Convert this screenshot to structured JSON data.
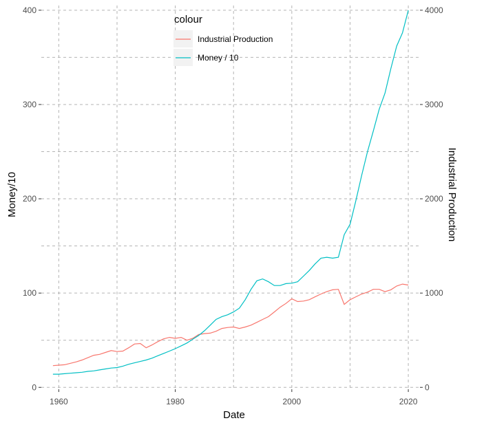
{
  "chart_data": {
    "type": "line",
    "title": "",
    "xlabel": "Date",
    "ylabel": "Money/10",
    "y2label": "Industrial Production",
    "xlim": [
      1957,
      2022
    ],
    "ylim": [
      -2,
      405
    ],
    "y2lim": [
      -20,
      4050
    ],
    "x_ticks": [
      1960,
      1980,
      2000,
      2020
    ],
    "x_minor_ticks": [
      1970,
      1990,
      2010
    ],
    "y_ticks": [
      0,
      100,
      200,
      300,
      400
    ],
    "y2_ticks": [
      0,
      1000,
      2000,
      3000,
      4000
    ],
    "grid": true,
    "legend": {
      "title": "colour",
      "position": "top-center"
    },
    "series": [
      {
        "name": "Industrial Production",
        "color": "#F8766D",
        "points": [
          [
            1959,
            23
          ],
          [
            1960,
            23.5
          ],
          [
            1961,
            24
          ],
          [
            1962,
            25.5
          ],
          [
            1963,
            27
          ],
          [
            1964,
            29
          ],
          [
            1965,
            31.5
          ],
          [
            1966,
            34
          ],
          [
            1967,
            35
          ],
          [
            1968,
            37
          ],
          [
            1969,
            39
          ],
          [
            1970,
            38
          ],
          [
            1971,
            38.5
          ],
          [
            1972,
            42
          ],
          [
            1973,
            46
          ],
          [
            1974,
            46.5
          ],
          [
            1975,
            42
          ],
          [
            1976,
            45
          ],
          [
            1977,
            48.5
          ],
          [
            1978,
            51.5
          ],
          [
            1979,
            53
          ],
          [
            1980,
            52
          ],
          [
            1981,
            53
          ],
          [
            1982,
            50
          ],
          [
            1983,
            52
          ],
          [
            1984,
            56
          ],
          [
            1985,
            57
          ],
          [
            1986,
            57.5
          ],
          [
            1987,
            59.5
          ],
          [
            1988,
            62.5
          ],
          [
            1989,
            63.5
          ],
          [
            1990,
            64
          ],
          [
            1991,
            62.5
          ],
          [
            1992,
            64
          ],
          [
            1993,
            66
          ],
          [
            1994,
            69
          ],
          [
            1995,
            72
          ],
          [
            1996,
            75
          ],
          [
            1997,
            80
          ],
          [
            1998,
            85
          ],
          [
            1999,
            89
          ],
          [
            2000,
            94
          ],
          [
            2001,
            91
          ],
          [
            2002,
            91.5
          ],
          [
            2003,
            93
          ],
          [
            2004,
            96
          ],
          [
            2005,
            99
          ],
          [
            2006,
            101.5
          ],
          [
            2007,
            103.5
          ],
          [
            2008,
            104
          ],
          [
            2009,
            88
          ],
          [
            2010,
            93
          ],
          [
            2011,
            96
          ],
          [
            2012,
            99
          ],
          [
            2013,
            101
          ],
          [
            2014,
            104
          ],
          [
            2015,
            104
          ],
          [
            2016,
            101.5
          ],
          [
            2017,
            103.5
          ],
          [
            2018,
            107.5
          ],
          [
            2019,
            109.5
          ],
          [
            2020,
            108.5
          ]
        ]
      },
      {
        "name": "Money / 10",
        "color": "#00BFC4",
        "points": [
          [
            1959,
            14
          ],
          [
            1960,
            14
          ],
          [
            1961,
            14.5
          ],
          [
            1962,
            15
          ],
          [
            1963,
            15.5
          ],
          [
            1964,
            16
          ],
          [
            1965,
            17
          ],
          [
            1966,
            17.5
          ],
          [
            1967,
            18.5
          ],
          [
            1968,
            19.5
          ],
          [
            1969,
            20.5
          ],
          [
            1970,
            21
          ],
          [
            1971,
            22.5
          ],
          [
            1972,
            24.5
          ],
          [
            1973,
            26
          ],
          [
            1974,
            27.5
          ],
          [
            1975,
            29
          ],
          [
            1976,
            31
          ],
          [
            1977,
            33.5
          ],
          [
            1978,
            36
          ],
          [
            1979,
            38.5
          ],
          [
            1980,
            41
          ],
          [
            1981,
            44
          ],
          [
            1982,
            47
          ],
          [
            1983,
            51
          ],
          [
            1984,
            55
          ],
          [
            1985,
            60
          ],
          [
            1986,
            66
          ],
          [
            1987,
            72
          ],
          [
            1988,
            75
          ],
          [
            1989,
            77
          ],
          [
            1990,
            80
          ],
          [
            1991,
            84
          ],
          [
            1992,
            93
          ],
          [
            1993,
            104
          ],
          [
            1994,
            113
          ],
          [
            1995,
            115
          ],
          [
            1996,
            112
          ],
          [
            1997,
            108
          ],
          [
            1998,
            108
          ],
          [
            1999,
            110
          ],
          [
            2000,
            110.5
          ],
          [
            2001,
            112
          ],
          [
            2002,
            118
          ],
          [
            2003,
            124
          ],
          [
            2004,
            131
          ],
          [
            2005,
            137
          ],
          [
            2006,
            138
          ],
          [
            2007,
            137
          ],
          [
            2008,
            138
          ],
          [
            2009,
            162
          ],
          [
            2010,
            173
          ],
          [
            2011,
            198
          ],
          [
            2012,
            225
          ],
          [
            2013,
            250
          ],
          [
            2014,
            272
          ],
          [
            2015,
            295
          ],
          [
            2016,
            312
          ],
          [
            2017,
            338
          ],
          [
            2018,
            362
          ],
          [
            2019,
            376
          ],
          [
            2020,
            400
          ]
        ]
      }
    ]
  }
}
